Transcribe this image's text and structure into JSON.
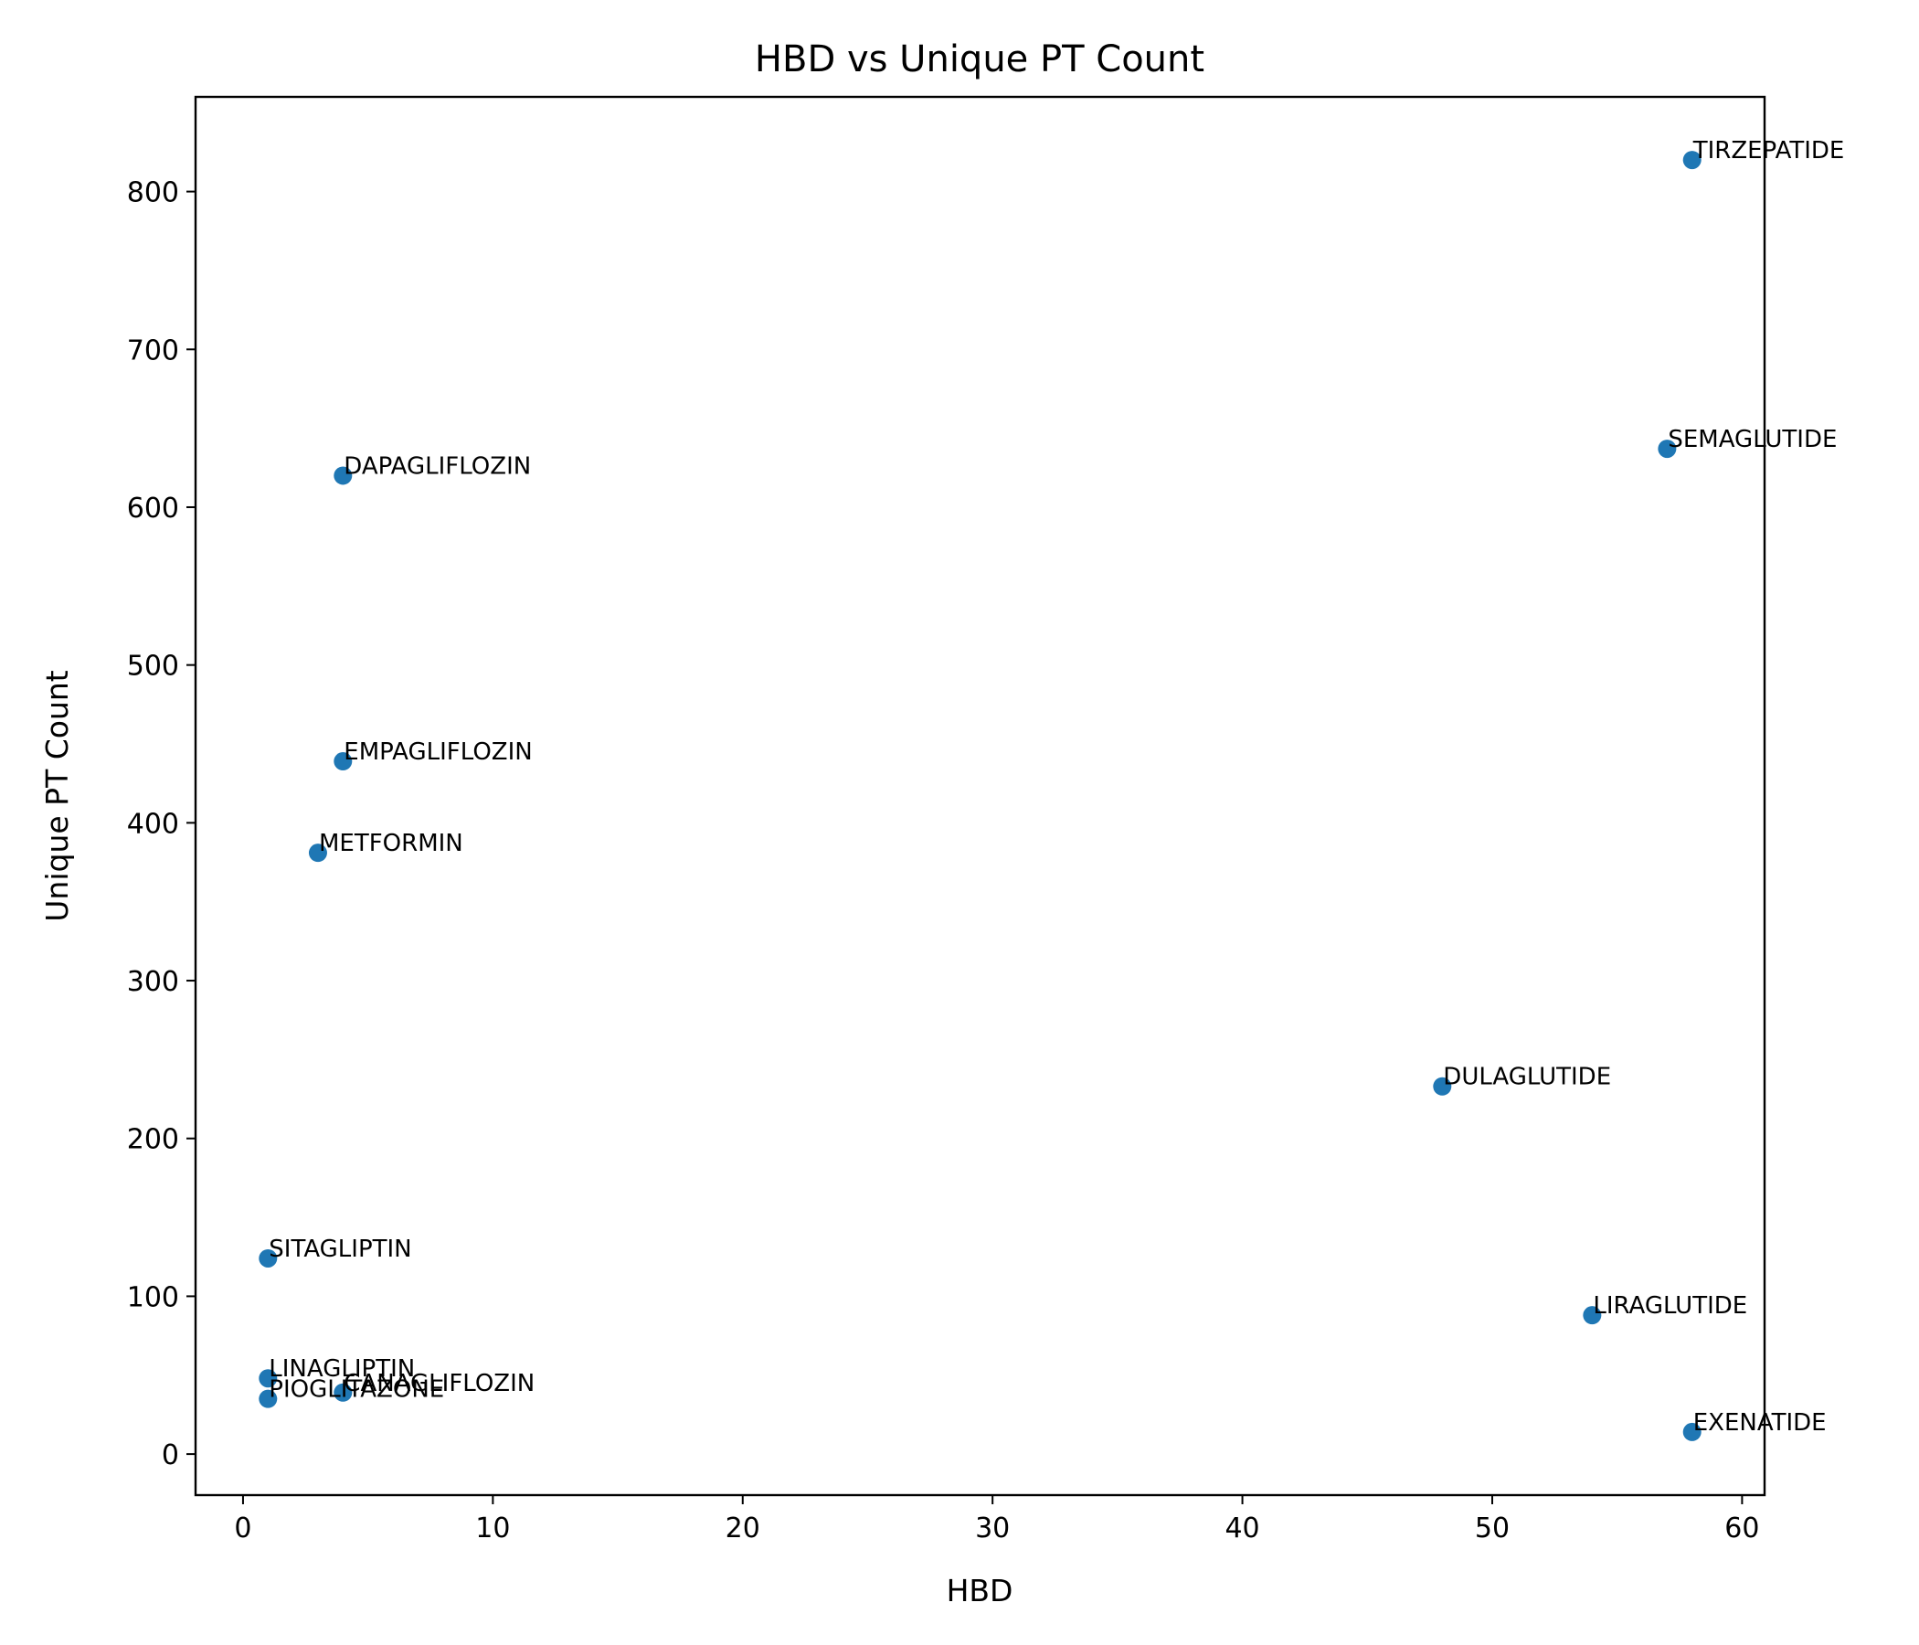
{
  "chart_data": {
    "type": "scatter",
    "title": "HBD vs Unique PT Count",
    "xlabel": "HBD",
    "ylabel": "Unique PT Count",
    "xlim": [
      -1.9,
      60.9
    ],
    "ylim": [
      -26,
      860
    ],
    "xticks": [
      0,
      10,
      20,
      30,
      40,
      50,
      60
    ],
    "yticks": [
      0,
      100,
      200,
      300,
      400,
      500,
      600,
      700,
      800
    ],
    "grid": false,
    "marker_color": "#1f77b4",
    "points": [
      {
        "label": "TIRZEPATIDE",
        "x": 58,
        "y": 820
      },
      {
        "label": "SEMAGLUTIDE",
        "x": 57,
        "y": 637
      },
      {
        "label": "DAPAGLIFLOZIN",
        "x": 4,
        "y": 620
      },
      {
        "label": "EMPAGLIFLOZIN",
        "x": 4,
        "y": 439
      },
      {
        "label": "METFORMIN",
        "x": 3,
        "y": 381
      },
      {
        "label": "DULAGLUTIDE",
        "x": 48,
        "y": 233
      },
      {
        "label": "SITAGLIPTIN",
        "x": 1,
        "y": 124
      },
      {
        "label": "LIRAGLUTIDE",
        "x": 54,
        "y": 88
      },
      {
        "label": "LINAGLIPTIN",
        "x": 1,
        "y": 48
      },
      {
        "label": "CANAGLIFLOZIN",
        "x": 4,
        "y": 39
      },
      {
        "label": "PIOGLITAZONE",
        "x": 1,
        "y": 35
      },
      {
        "label": "EXENATIDE",
        "x": 58,
        "y": 14
      }
    ]
  }
}
